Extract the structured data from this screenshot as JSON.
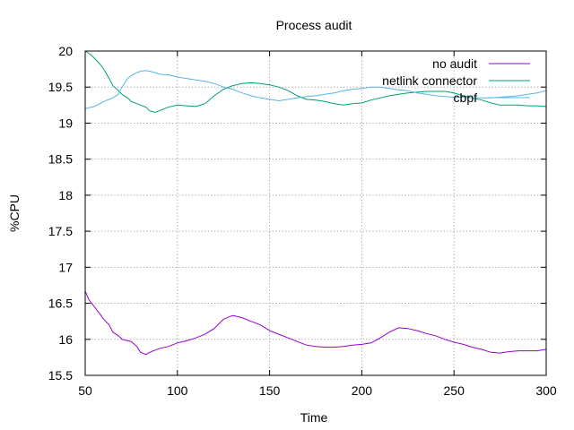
{
  "chart_data": {
    "type": "line",
    "title": "Process audit",
    "xlabel": "Time",
    "ylabel": "%CPU",
    "xlim": [
      50,
      300
    ],
    "ylim": [
      15.5,
      20
    ],
    "xticks": [
      50,
      100,
      150,
      200,
      250,
      300
    ],
    "yticks": [
      15.5,
      16,
      16.5,
      17,
      17.5,
      18,
      18.5,
      19,
      19.5,
      20
    ],
    "grid": true,
    "legend_position": "top-right",
    "series": [
      {
        "name": "no audit",
        "color": "#9400d3",
        "x": [
          50,
          52,
          55,
          58,
          60,
          63,
          65,
          68,
          70,
          73,
          75,
          78,
          80,
          83,
          85,
          88,
          90,
          95,
          100,
          105,
          110,
          115,
          120,
          125,
          130,
          135,
          140,
          145,
          150,
          155,
          160,
          165,
          170,
          175,
          180,
          185,
          190,
          195,
          200,
          205,
          210,
          215,
          220,
          225,
          230,
          235,
          240,
          245,
          250,
          255,
          260,
          265,
          270,
          275,
          280,
          285,
          290,
          295,
          300
        ],
        "y": [
          16.67,
          16.55,
          16.45,
          16.35,
          16.28,
          16.2,
          16.1,
          16.05,
          16.0,
          15.98,
          15.97,
          15.9,
          15.82,
          15.79,
          15.82,
          15.85,
          15.87,
          15.9,
          15.95,
          15.98,
          16.02,
          16.07,
          16.15,
          16.28,
          16.33,
          16.3,
          16.25,
          16.2,
          16.12,
          16.07,
          16.02,
          15.97,
          15.92,
          15.9,
          15.89,
          15.89,
          15.9,
          15.92,
          15.93,
          15.95,
          16.02,
          16.1,
          16.16,
          16.15,
          16.12,
          16.08,
          16.05,
          16.0,
          15.96,
          15.93,
          15.89,
          15.86,
          15.82,
          15.81,
          15.83,
          15.84,
          15.84,
          15.84,
          15.86
        ]
      },
      {
        "name": "netlink connector",
        "color": "#009e73",
        "x": [
          50,
          53,
          55,
          58,
          60,
          63,
          65,
          68,
          70,
          73,
          75,
          78,
          80,
          83,
          85,
          88,
          90,
          95,
          100,
          105,
          110,
          115,
          120,
          125,
          130,
          135,
          140,
          145,
          150,
          155,
          160,
          165,
          170,
          175,
          180,
          185,
          190,
          195,
          200,
          205,
          210,
          215,
          220,
          225,
          230,
          235,
          240,
          245,
          250,
          255,
          260,
          265,
          270,
          275,
          280,
          285,
          290,
          295,
          300
        ],
        "y": [
          20.0,
          19.95,
          19.9,
          19.82,
          19.75,
          19.62,
          19.52,
          19.45,
          19.4,
          19.35,
          19.3,
          19.27,
          19.25,
          19.22,
          19.17,
          19.15,
          19.17,
          19.22,
          19.25,
          19.24,
          19.23,
          19.27,
          19.38,
          19.47,
          19.52,
          19.55,
          19.56,
          19.55,
          19.53,
          19.5,
          19.45,
          19.38,
          19.33,
          19.32,
          19.3,
          19.27,
          19.25,
          19.27,
          19.28,
          19.32,
          19.35,
          19.38,
          19.4,
          19.42,
          19.43,
          19.44,
          19.44,
          19.44,
          19.42,
          19.38,
          19.35,
          19.32,
          19.28,
          19.25,
          19.25,
          19.25,
          19.24,
          19.24,
          19.23
        ]
      },
      {
        "name": "cbpf",
        "color": "#56b4e9",
        "x": [
          50,
          53,
          55,
          58,
          60,
          63,
          65,
          68,
          70,
          73,
          75,
          78,
          80,
          83,
          85,
          88,
          90,
          95,
          100,
          105,
          110,
          115,
          120,
          125,
          130,
          135,
          140,
          145,
          150,
          155,
          160,
          165,
          170,
          175,
          180,
          185,
          190,
          195,
          200,
          205,
          210,
          215,
          220,
          225,
          230,
          235,
          240,
          245,
          250,
          255,
          260,
          265,
          270,
          275,
          280,
          285,
          290,
          295,
          300
        ],
        "y": [
          19.2,
          19.22,
          19.23,
          19.27,
          19.3,
          19.33,
          19.35,
          19.4,
          19.5,
          19.62,
          19.66,
          19.7,
          19.72,
          19.73,
          19.72,
          19.7,
          19.68,
          19.67,
          19.64,
          19.62,
          19.6,
          19.58,
          19.55,
          19.5,
          19.47,
          19.42,
          19.38,
          19.35,
          19.33,
          19.31,
          19.33,
          19.35,
          19.37,
          19.38,
          19.4,
          19.42,
          19.45,
          19.47,
          19.48,
          19.5,
          19.5,
          19.48,
          19.46,
          19.45,
          19.42,
          19.4,
          19.38,
          19.37,
          19.36,
          19.36,
          19.35,
          19.35,
          19.35,
          19.36,
          19.37,
          19.38,
          19.4,
          19.42,
          19.45
        ]
      }
    ]
  }
}
